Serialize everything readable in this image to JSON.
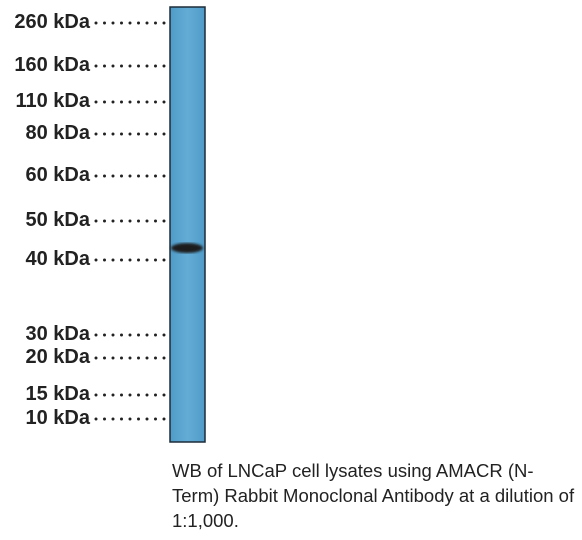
{
  "markers": [
    "260 kDa",
    "160 kDa",
    "110 kDa",
    "80 kDa",
    "60 kDa",
    "50 kDa",
    "40 kDa",
    "30 kDa",
    "20 kDa",
    "15 kDa",
    "10 kDa"
  ],
  "caption": "WB of LNCaP cell lysates using AMACR (N-Term) Rabbit Monoclonal Antibody at a dilution of 1:1,000."
}
